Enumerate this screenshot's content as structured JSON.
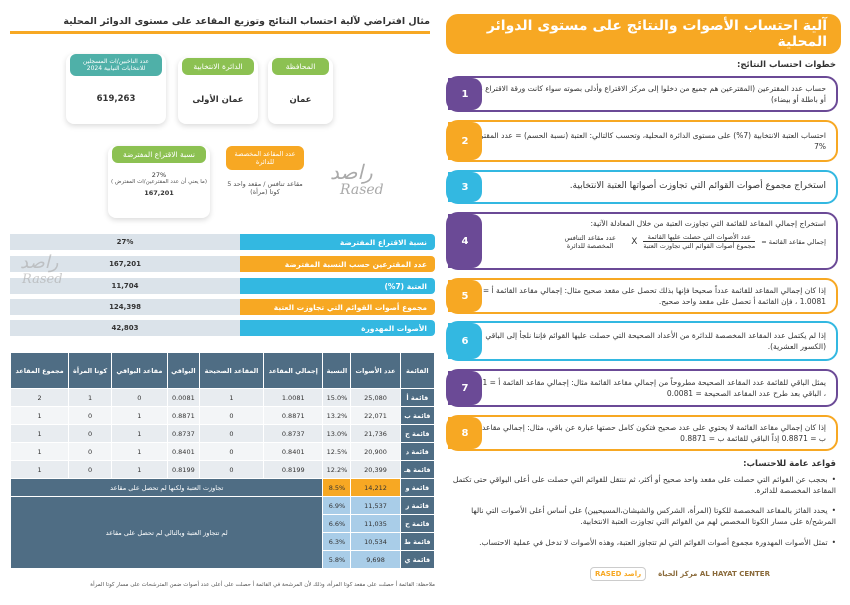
{
  "right": {
    "title": "آلية احتساب الأصوات والنتائج على مستوى الدوائر المحلية",
    "steps_heading": "خطوات احتساب النتائج:",
    "steps": [
      {
        "num": "1",
        "text": "حساب عدد المقترعين (المقترعين هم جميع من دخلوا إلى مركز الاقتراع وأدلى بصوته سواء كانت ورقة الاقتراع صحيحة أو باطلة أو بيضاء)"
      },
      {
        "num": "2",
        "text": "احتساب العتبة الانتخابية (7%) على مستوى الدائرة المحلية، وتحسب كالتالي: العتبة (نسبة الحسم) = عدد المقترعين X 7%"
      },
      {
        "num": "3",
        "text": "استخراج مجموع أصوات القوائم التي تجاوزت أصواتها العتبة الانتخابية."
      },
      {
        "num": "4",
        "text": "استخراج إجمالي المقاعد للقائمة التي تجاوزت العتبة من خلال المعادلة الآتية:",
        "formula_left": "إجمالي مقاعد القائمة =",
        "formula_num": "عدد الأصوات التي حصلت عليها القائمة",
        "formula_den": "مجموع أصوات القوائم التي تجاوزت العتبة",
        "formula_x": "X",
        "formula_right": "عدد مقاعد التنافس المخصصة للدائرة"
      },
      {
        "num": "5",
        "text": "إذا كان إجمالي المقاعد للقائمة عدداً صحيحا فإنها بذلك تحصل على مقعد صحيح مثال: إجمالي مقاعد القائمة أ = 1.0081 ، فإن القائمة أ تحصل على مقعد واحد صحيح."
      },
      {
        "num": "6",
        "text": "إذا لم يكتمل عدد المقاعد المخصصة للدائرة من الأعداد الصحيحة التي حصلت عليها القوائم فإننا نلجأ إلى الباقي (الكسور العشرية)."
      },
      {
        "num": "7",
        "text": "يمثل الباقي للقائمة عدد المقاعد الصحيحة مطروحاً من إجمالي مقاعد القائمة مثال: إجمالي مقاعد القائمة أ = 1.0081 ، الباقي بعد طرح عدد المقاعد الصحيحة = 0.0081"
      },
      {
        "num": "8",
        "text": "إذا كان إجمالي مقاعد القائمة لا يحتوي على عدد صحيح فتكون كامل حصتها عبارة عن باقي، مثال: إجمالي مقاعد القائمة ب = 0.8871 إذاً الباقي للقائمة ب = 0.8871"
      }
    ],
    "rules_heading": "قواعد عامة للاحتساب:",
    "rules": [
      "بحجب عن القوائم التي حصلت على مقعد واحد صحيح أو أكثر، ثم ننتقل للقوائم التي حصلت على أعلى البواقي حتى تكتمل المقاعد المخصصة للدائرة.",
      "يحدد الفائز بالمقاعد المخصصة للكوتا (المرأة، الشركس والشيشان،المسيحيين) على أساس أعلى الأصوات التي نالها المرشح/ة على مسار الكوتا المخصص لهم من القوائم التي تجاوزت العتبة الانتخابية.",
      "تمثل الأصوات المهدورة مجموع أصوات القوائم التي لم تتجاوز العتبة، وهذه الأصوات لا تدخل في عملية الاحتساب."
    ],
    "logo_left": "RASED راصد",
    "logo_right": "مركز الحياة AL HAYAT CENTER"
  },
  "left": {
    "title": "مثال افتراضي لآلية احتساب النتائج وتوزيع المقاعد على مستوى الدوائر المحلية",
    "cards": {
      "governorate_label": "المحافظة",
      "governorate_value": "عمان",
      "district_label": "الدائرة الانتخابية",
      "district_value": "عمان الأولى",
      "voters_label": "عدد الناخبين/ات المسجلين للانتخابات النيابية 2024",
      "voters_value": "619,263",
      "seats_label": "عدد المقاعد المخصصة للدائرة",
      "seats_value": "5 مقاعد تنافس / مقعد واحد كوتا (مرأة)",
      "turnout_label": "نسبة الاقتراع المفترضة",
      "turnout_pct": "27%",
      "turnout_note": "( ما يعني أن عدد المقترعين/ات المفترض)",
      "turnout_value": "167,201"
    },
    "watermark": "راصد",
    "watermark_en": "Rased",
    "bars": [
      {
        "label": "نسبة الاقتراع المفترضة",
        "value": "27%"
      },
      {
        "label": "عدد المقترعين حسب النسبة المفترضة",
        "value": "167,201"
      },
      {
        "label": "العتبة (7%)",
        "value": "11,704"
      },
      {
        "label": "مجموع أصوات القوائم التي تجاوزت العتبة",
        "value": "124,398"
      },
      {
        "label": "الأصوات المهدورة",
        "value": "42,803"
      }
    ],
    "table": {
      "headers": [
        "القائمة",
        "عدد الأصوات",
        "النسبة",
        "إجمالي المقاعد",
        "المقاعد الصحيحة",
        "البواقي",
        "مقاعد البواقي",
        "كوتا المرأة",
        "مجموع المقاعد"
      ],
      "rows": [
        [
          "قائمة أ",
          "25,080",
          "15.0%",
          "1.0081",
          "1",
          "0.0081",
          "0",
          "1",
          "2"
        ],
        [
          "قائمة ب",
          "22,071",
          "13.2%",
          "0.8871",
          "0",
          "0.8871",
          "1",
          "0",
          "1"
        ],
        [
          "قائمة ج",
          "21,736",
          "13.0%",
          "0.8737",
          "0",
          "0.8737",
          "1",
          "0",
          "1"
        ],
        [
          "قائمة د",
          "20,900",
          "12.5%",
          "0.8401",
          "0",
          "0.8401",
          "1",
          "0",
          "1"
        ],
        [
          "قائمة هـ",
          "20,399",
          "12.2%",
          "0.8199",
          "0",
          "0.8199",
          "1",
          "0",
          "1"
        ]
      ],
      "row_f": [
        "قائمة و",
        "14,212",
        "8.5%"
      ],
      "row_f_note": "تجاوزت العتبة ولكنها لم تحصل على مقاعد",
      "rest_rows": [
        [
          "قائمة ز",
          "11,537",
          "6.9%"
        ],
        [
          "قائمة ح",
          "11,035",
          "6.6%"
        ],
        [
          "قائمة ط",
          "10,534",
          "6.3%"
        ],
        [
          "قائمة ي",
          "9,698",
          "5.8%"
        ]
      ],
      "rest_note": "لم تتجاوز العتبة وبالتالي لم تحصل على مقاعد"
    },
    "note": "ملاحظة: القائمة أ حصلت على مقعد كوتا المرأة، وذلك لأن المرشحة في القائمة أ حصلت على أعلى عدد أصوات ضمن المترشحات على مسار كوتا المرأة"
  },
  "colors": {
    "orange": "#f7a823",
    "purple": "#6b4a96",
    "blue": "#33b8e1",
    "slate": "#4f6d84"
  }
}
